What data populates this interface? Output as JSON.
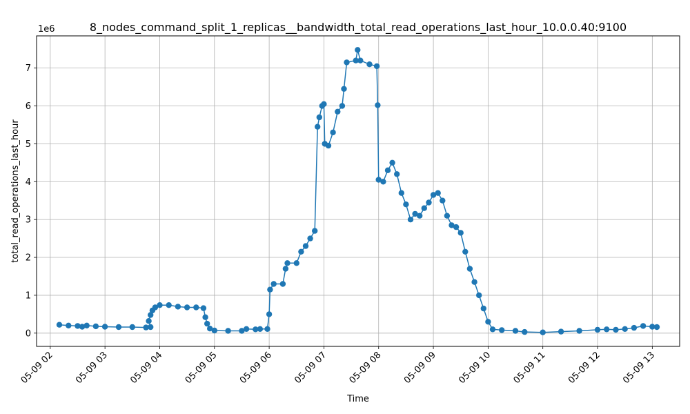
{
  "chart_data": {
    "type": "line",
    "title": "8_nodes_command_split_1_replicas__bandwidth_total_read_operations_last_hour_10.0.0.40:9100",
    "xlabel": "Time",
    "ylabel": "total_read_operations_last_hour",
    "y_offset_label": "1e6",
    "grid": true,
    "marker": "circle",
    "color": "#1f77b4",
    "xlim": [
      "2025-05-09 01:45",
      "2025-05-09 13:30"
    ],
    "ylim": [
      -350000,
      7850000
    ],
    "x_ticks": [
      "05-09 02",
      "05-09 03",
      "05-09 04",
      "05-09 05",
      "05-09 06",
      "05-09 07",
      "05-09 08",
      "05-09 09",
      "05-09 10",
      "05-09 11",
      "05-09 12",
      "05-09 13"
    ],
    "x_tick_values": [
      "2025-05-09 02:00",
      "2025-05-09 03:00",
      "2025-05-09 04:00",
      "2025-05-09 05:00",
      "2025-05-09 06:00",
      "2025-05-09 07:00",
      "2025-05-09 08:00",
      "2025-05-09 09:00",
      "2025-05-09 10:00",
      "2025-05-09 11:00",
      "2025-05-09 12:00",
      "2025-05-09 13:00"
    ],
    "y_ticks": [
      "0",
      "1",
      "2",
      "3",
      "4",
      "5",
      "6",
      "7"
    ],
    "y_tick_values": [
      0,
      1000000,
      2000000,
      3000000,
      4000000,
      5000000,
      6000000,
      7000000
    ],
    "series": [
      {
        "points": [
          [
            "2025-05-09 02:10",
            220000
          ],
          [
            "2025-05-09 02:20",
            200000
          ],
          [
            "2025-05-09 02:30",
            190000
          ],
          [
            "2025-05-09 02:35",
            170000
          ],
          [
            "2025-05-09 02:40",
            200000
          ],
          [
            "2025-05-09 02:50",
            180000
          ],
          [
            "2025-05-09 03:00",
            170000
          ],
          [
            "2025-05-09 03:15",
            160000
          ],
          [
            "2025-05-09 03:30",
            160000
          ],
          [
            "2025-05-09 03:45",
            150000
          ],
          [
            "2025-05-09 03:50",
            160000
          ],
          [
            "2025-05-09 03:48",
            320000
          ],
          [
            "2025-05-09 03:50",
            480000
          ],
          [
            "2025-05-09 03:52",
            600000
          ],
          [
            "2025-05-09 03:55",
            680000
          ],
          [
            "2025-05-09 04:00",
            740000
          ],
          [
            "2025-05-09 04:10",
            740000
          ],
          [
            "2025-05-09 04:20",
            700000
          ],
          [
            "2025-05-09 04:30",
            680000
          ],
          [
            "2025-05-09 04:40",
            680000
          ],
          [
            "2025-05-09 04:48",
            660000
          ],
          [
            "2025-05-09 04:50",
            420000
          ],
          [
            "2025-05-09 04:52",
            250000
          ],
          [
            "2025-05-09 04:55",
            120000
          ],
          [
            "2025-05-09 05:00",
            70000
          ],
          [
            "2025-05-09 05:15",
            60000
          ],
          [
            "2025-05-09 05:30",
            60000
          ],
          [
            "2025-05-09 05:35",
            110000
          ],
          [
            "2025-05-09 05:45",
            100000
          ],
          [
            "2025-05-09 05:50",
            110000
          ],
          [
            "2025-05-09 05:58",
            110000
          ],
          [
            "2025-05-09 06:00",
            500000
          ],
          [
            "2025-05-09 06:01",
            1150000
          ],
          [
            "2025-05-09 06:05",
            1300000
          ],
          [
            "2025-05-09 06:15",
            1300000
          ],
          [
            "2025-05-09 06:18",
            1700000
          ],
          [
            "2025-05-09 06:20",
            1850000
          ],
          [
            "2025-05-09 06:30",
            1850000
          ],
          [
            "2025-05-09 06:35",
            2150000
          ],
          [
            "2025-05-09 06:40",
            2300000
          ],
          [
            "2025-05-09 06:45",
            2500000
          ],
          [
            "2025-05-09 06:50",
            2700000
          ],
          [
            "2025-05-09 06:53",
            5450000
          ],
          [
            "2025-05-09 06:55",
            5700000
          ],
          [
            "2025-05-09 06:58",
            6000000
          ],
          [
            "2025-05-09 07:00",
            6050000
          ],
          [
            "2025-05-09 07:01",
            5000000
          ],
          [
            "2025-05-09 07:05",
            4950000
          ],
          [
            "2025-05-09 07:10",
            5300000
          ],
          [
            "2025-05-09 07:15",
            5850000
          ],
          [
            "2025-05-09 07:20",
            6000000
          ],
          [
            "2025-05-09 07:22",
            6450000
          ],
          [
            "2025-05-09 07:25",
            7150000
          ],
          [
            "2025-05-09 07:35",
            7200000
          ],
          [
            "2025-05-09 07:37",
            7480000
          ],
          [
            "2025-05-09 07:40",
            7200000
          ],
          [
            "2025-05-09 07:50",
            7100000
          ],
          [
            "2025-05-09 07:58",
            7050000
          ],
          [
            "2025-05-09 07:59",
            6020000
          ],
          [
            "2025-05-09 08:00",
            4050000
          ],
          [
            "2025-05-09 08:05",
            4000000
          ],
          [
            "2025-05-09 08:10",
            4300000
          ],
          [
            "2025-05-09 08:15",
            4500000
          ],
          [
            "2025-05-09 08:20",
            4200000
          ],
          [
            "2025-05-09 08:25",
            3700000
          ],
          [
            "2025-05-09 08:30",
            3400000
          ],
          [
            "2025-05-09 08:35",
            3000000
          ],
          [
            "2025-05-09 08:40",
            3150000
          ],
          [
            "2025-05-09 08:45",
            3100000
          ],
          [
            "2025-05-09 08:50",
            3300000
          ],
          [
            "2025-05-09 08:55",
            3450000
          ],
          [
            "2025-05-09 09:00",
            3650000
          ],
          [
            "2025-05-09 09:05",
            3700000
          ],
          [
            "2025-05-09 09:10",
            3500000
          ],
          [
            "2025-05-09 09:15",
            3100000
          ],
          [
            "2025-05-09 09:20",
            2850000
          ],
          [
            "2025-05-09 09:25",
            2800000
          ],
          [
            "2025-05-09 09:30",
            2650000
          ],
          [
            "2025-05-09 09:35",
            2150000
          ],
          [
            "2025-05-09 09:40",
            1700000
          ],
          [
            "2025-05-09 09:45",
            1350000
          ],
          [
            "2025-05-09 09:50",
            1000000
          ],
          [
            "2025-05-09 09:55",
            650000
          ],
          [
            "2025-05-09 10:00",
            300000
          ],
          [
            "2025-05-09 10:05",
            100000
          ],
          [
            "2025-05-09 10:15",
            80000
          ],
          [
            "2025-05-09 10:30",
            60000
          ],
          [
            "2025-05-09 10:40",
            30000
          ],
          [
            "2025-05-09 11:00",
            20000
          ],
          [
            "2025-05-09 11:20",
            40000
          ],
          [
            "2025-05-09 11:40",
            60000
          ],
          [
            "2025-05-09 12:00",
            90000
          ],
          [
            "2025-05-09 12:10",
            100000
          ],
          [
            "2025-05-09 12:20",
            90000
          ],
          [
            "2025-05-09 12:30",
            110000
          ],
          [
            "2025-05-09 12:40",
            140000
          ],
          [
            "2025-05-09 12:50",
            190000
          ],
          [
            "2025-05-09 13:00",
            170000
          ],
          [
            "2025-05-09 13:05",
            160000
          ]
        ]
      }
    ]
  }
}
